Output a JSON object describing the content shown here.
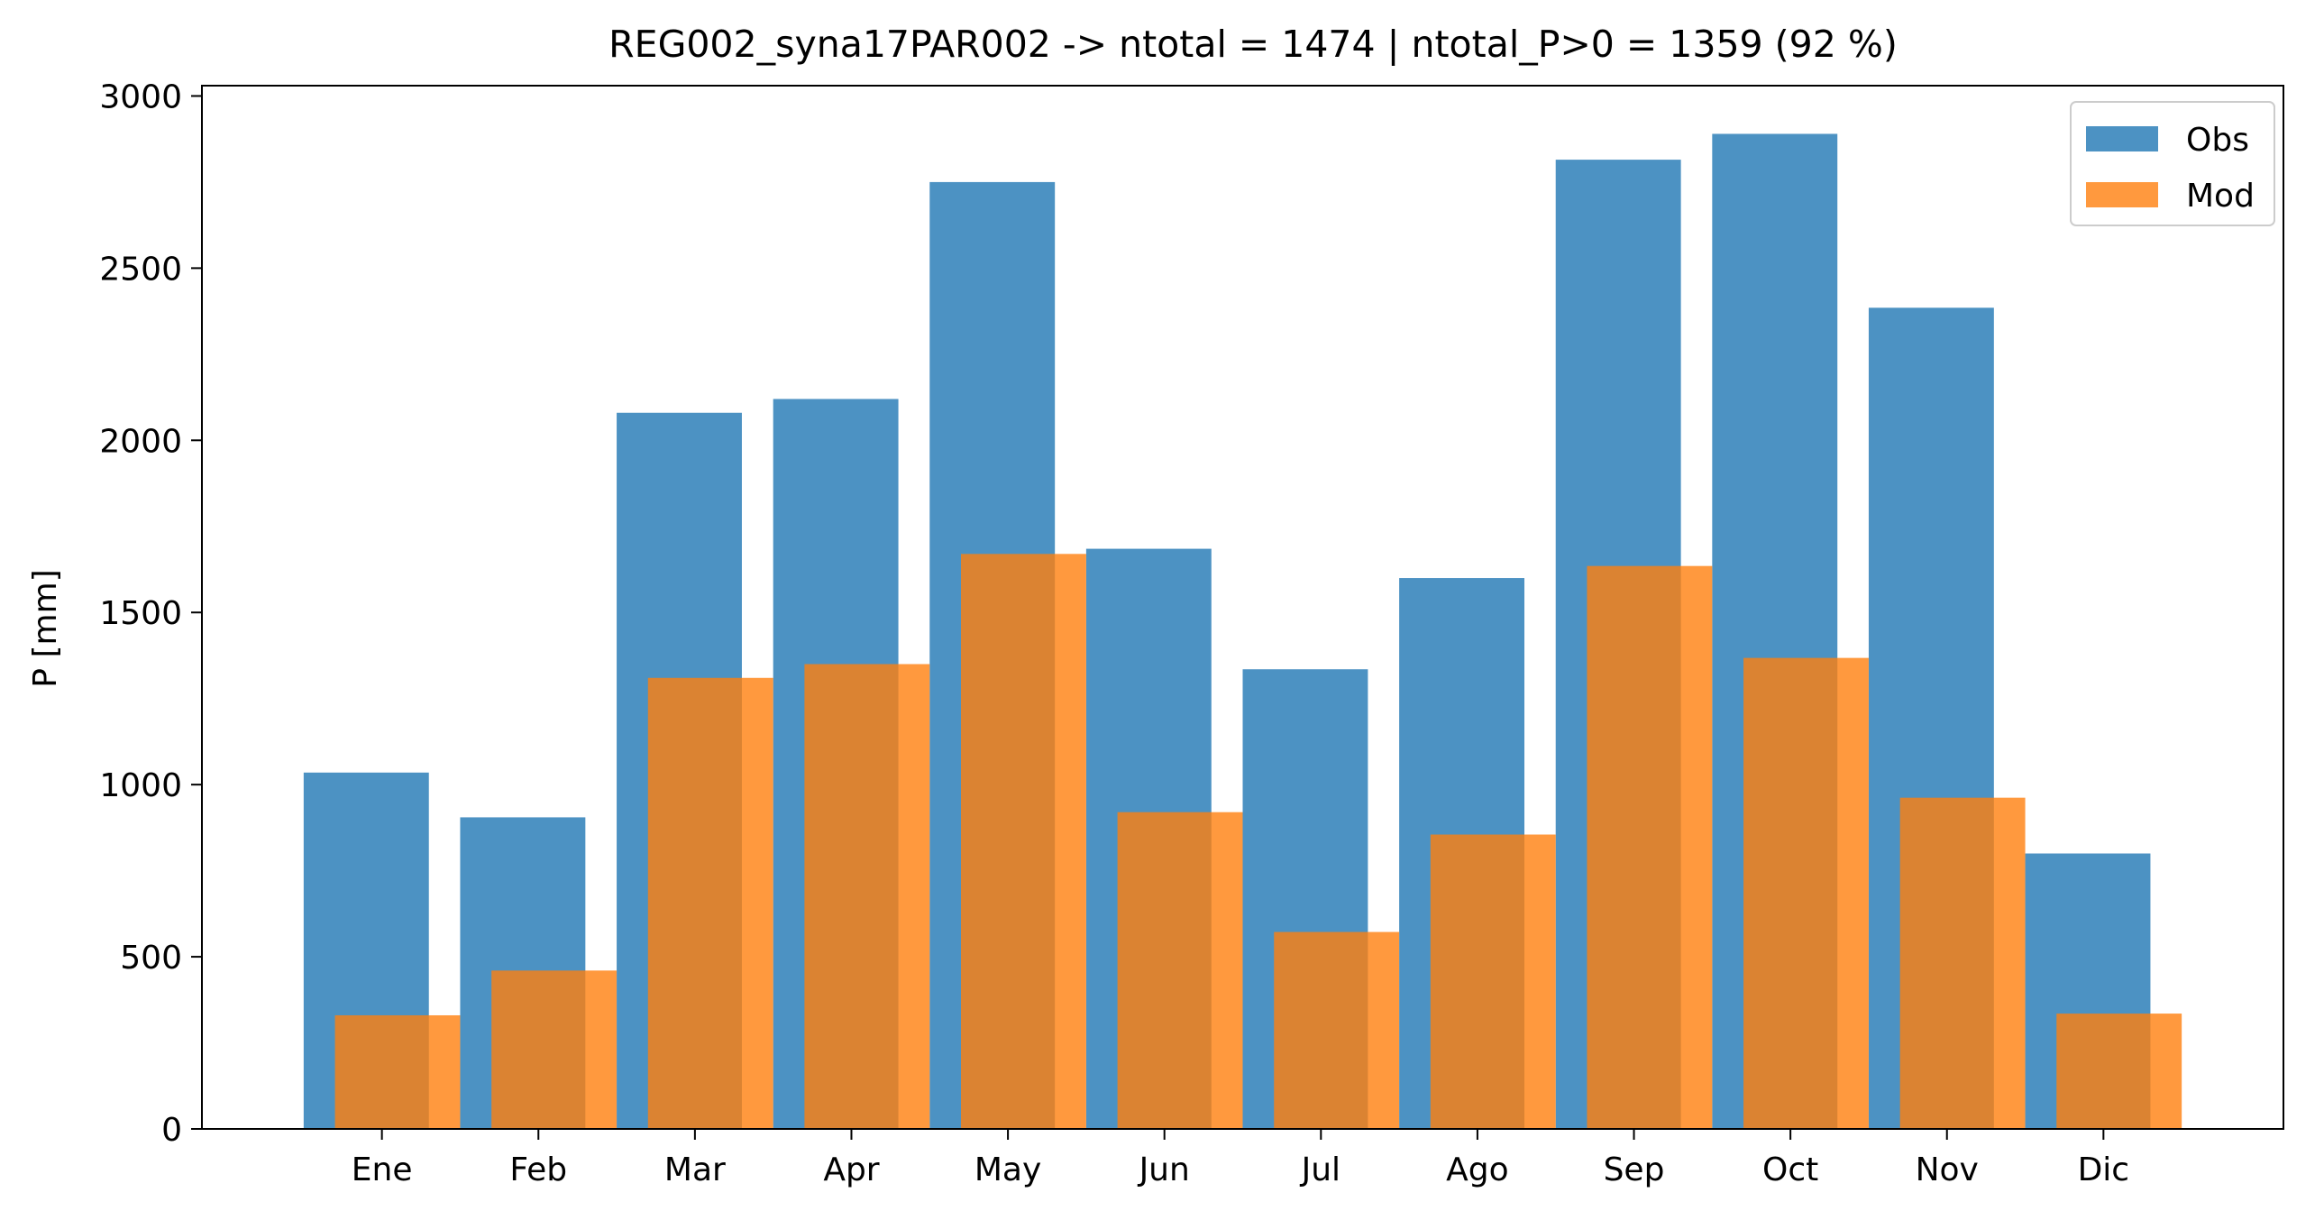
{
  "chart_data": {
    "type": "bar",
    "title": "REG002_syna17PAR002 -> ntotal = 1474 | ntotal_P>0 = 1359 (92 %)",
    "xlabel": "",
    "ylabel": "P [mm]",
    "ylim": [
      0,
      3030
    ],
    "yticks": [
      "0",
      "500",
      "1000",
      "1500",
      "2000",
      "2500",
      "3000"
    ],
    "ytick_values": [
      0,
      500,
      1000,
      1500,
      2000,
      2500,
      3000
    ],
    "categories": [
      "Ene",
      "Feb",
      "Mar",
      "Apr",
      "May",
      "Jun",
      "Jul",
      "Ago",
      "Sep",
      "Oct",
      "Nov",
      "Dic"
    ],
    "grid": false,
    "legend_position": "top-right",
    "series": [
      {
        "name": "Obs",
        "color": "#1f77b4",
        "opacity": 0.8,
        "values": [
          1035,
          905,
          2080,
          2120,
          2750,
          1685,
          1335,
          1600,
          2815,
          2890,
          2385,
          800
        ]
      },
      {
        "name": "Mod",
        "color": "#ff7f0e",
        "opacity": 0.8,
        "values": [
          330,
          460,
          1310,
          1350,
          1670,
          920,
          572,
          855,
          1635,
          1368,
          962,
          335
        ]
      }
    ]
  }
}
